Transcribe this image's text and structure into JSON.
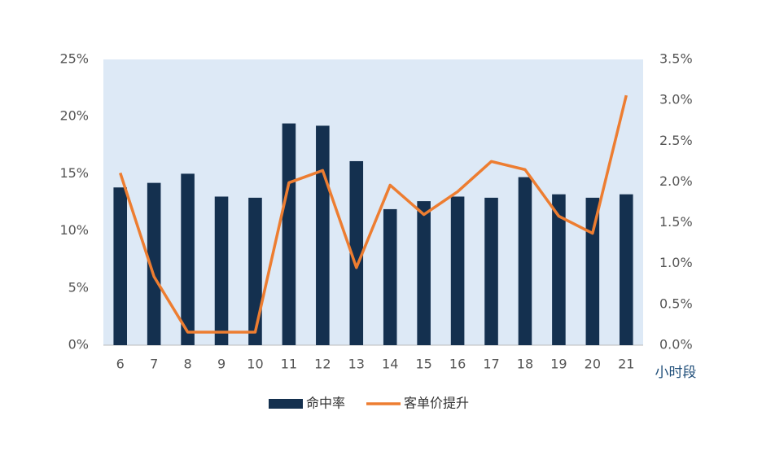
{
  "chart_data": {
    "type": "bar-line",
    "x_label": "小时段",
    "categories": [
      "6",
      "7",
      "8",
      "9",
      "10",
      "11",
      "12",
      "13",
      "14",
      "15",
      "16",
      "17",
      "18",
      "19",
      "20",
      "21"
    ],
    "series": [
      {
        "name": "命中率",
        "type": "bar",
        "color": "#14304f",
        "values": [
          13.8,
          14.2,
          15.0,
          13.0,
          12.9,
          19.4,
          19.2,
          16.1,
          11.9,
          12.6,
          13.0,
          12.9,
          14.7,
          13.2,
          12.9,
          13.2
        ]
      },
      {
        "name": "客单价提升",
        "type": "line",
        "axis": "y2",
        "color": "#ed7d31",
        "values": [
          2.11,
          0.84,
          0.16,
          0.16,
          0.16,
          1.99,
          2.14,
          0.95,
          1.96,
          1.6,
          1.88,
          2.25,
          2.15,
          1.58,
          1.37,
          3.06
        ]
      }
    ],
    "ylim": [
      0,
      25
    ],
    "yticks": [
      {
        "value": 0,
        "label": "0%"
      },
      {
        "value": 5,
        "label": "5%"
      },
      {
        "value": 10,
        "label": "10%"
      },
      {
        "value": 15,
        "label": "15%"
      },
      {
        "value": 20,
        "label": "20%"
      },
      {
        "value": 25,
        "label": "25%"
      }
    ],
    "y2lim": [
      0,
      3.5
    ],
    "y2ticks": [
      {
        "value": 0,
        "label": "0.0%"
      },
      {
        "value": 0.5,
        "label": "0.5%"
      },
      {
        "value": 1,
        "label": "1.0%"
      },
      {
        "value": 1.5,
        "label": "1.5%"
      },
      {
        "value": 2,
        "label": "2.0%"
      },
      {
        "value": 2.5,
        "label": "2.5%"
      },
      {
        "value": 3,
        "label": "3.0%"
      },
      {
        "value": 3.5,
        "label": "3.5%"
      }
    ],
    "plot_background": "#dde9f6",
    "legend": "bottom"
  }
}
